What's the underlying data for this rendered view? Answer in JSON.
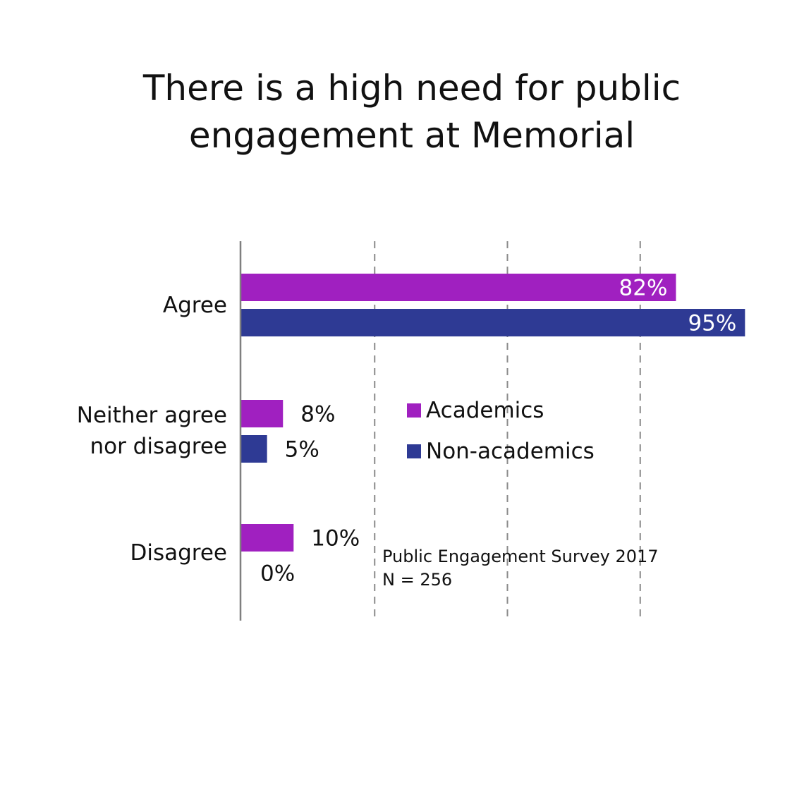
{
  "chart_data": {
    "type": "bar",
    "orientation": "horizontal",
    "title_lines": [
      "There is a high need for public",
      "engagement at Memorial"
    ],
    "categories": [
      "Agree",
      "Neither agree nor disagree",
      "Disagree"
    ],
    "category_label_lines": [
      [
        "Agree"
      ],
      [
        "Neither agree",
        "nor disagree"
      ],
      [
        "Disagree"
      ]
    ],
    "series": [
      {
        "name": "Academics",
        "values": [
          82,
          8,
          10
        ],
        "labels": [
          "82%",
          "8%",
          "10%"
        ]
      },
      {
        "name": "Non-academics",
        "values": [
          95,
          5,
          0
        ],
        "labels": [
          "95%",
          "5%",
          "0%"
        ]
      }
    ],
    "xlim": [
      0,
      100
    ],
    "gridlines": [
      25,
      50,
      75
    ],
    "grid": true,
    "legend_position": "center-right",
    "annotation_lines": [
      "Public Engagement Survey 2017",
      "N = 256"
    ],
    "colors": {
      "Academics": "#a020c0",
      "Non-academics": "#2e3a94",
      "label_inside": "#ffffff",
      "label_outside": "#111111",
      "axis": "#7f7f7f",
      "grid": "#8a8a8a"
    }
  }
}
